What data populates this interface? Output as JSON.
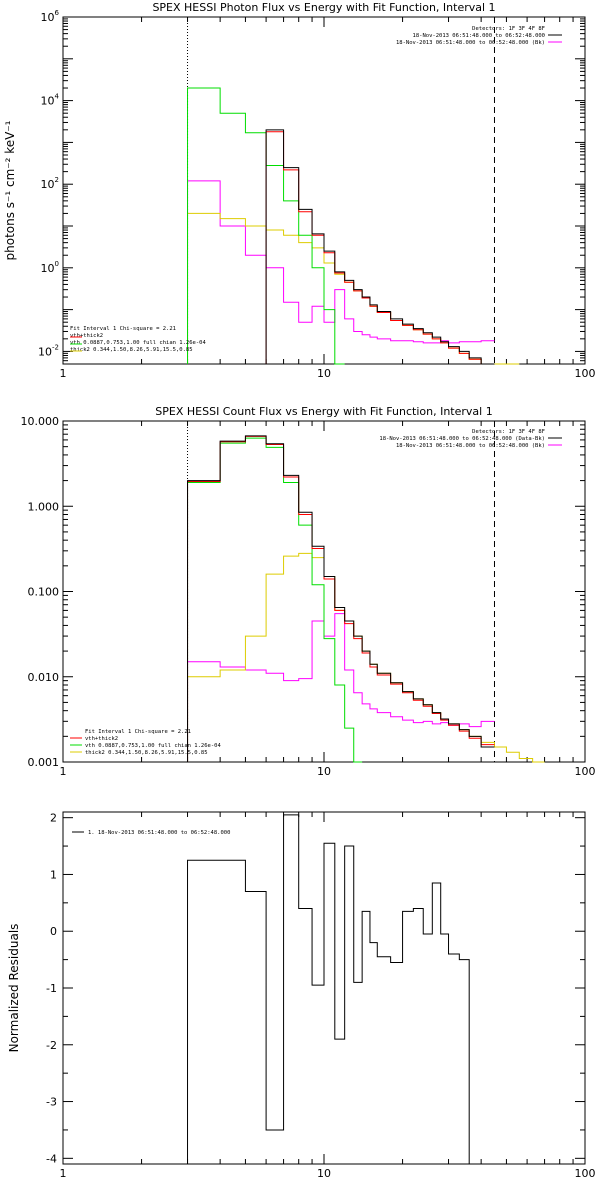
{
  "panels": [
    {
      "title": "SPEX HESSI Photon Flux vs Energy with Fit Function, Interval 1",
      "ylabel": "photons s⁻¹ cm⁻² keV⁻¹",
      "ytick_labels": [
        {
          "base": "10",
          "exp": "-2",
          "value": 0.01
        },
        {
          "base": "10",
          "exp": "0",
          "value": 1
        },
        {
          "base": "10",
          "exp": "2",
          "value": 100
        },
        {
          "base": "10",
          "exp": "4",
          "value": 10000
        },
        {
          "base": "10",
          "exp": "6",
          "value": 1000000
        }
      ],
      "xtick_labels": [
        "1",
        "10",
        "100"
      ],
      "legend_top": [
        "Detectors: 1F 3F 4F 8F",
        "18-Nov-2013 06:51:48.000 to 06:52:48.000",
        "18-Nov-2013 06:51:48.000 to 06:52:48.000 (Bk)"
      ],
      "legend_bottom": [
        "Fit Interval 1   Chi-square = 2.21",
        "vth+thick2",
        "vth 0.0887,0.753,1.00  full chian 1.26e-04",
        "thick2 0.344,1.50,8.26,5.91,15.5,0.85"
      ]
    },
    {
      "title": "SPEX HESSI Count Flux vs Energy with Fit Function, Interval 1",
      "ylabel": "",
      "ytick_labels": [
        "0.001",
        "0.010",
        "0.100",
        "1.000",
        "10.000"
      ],
      "xtick_labels": [
        "1",
        "10",
        "100"
      ],
      "legend_top": [
        "Detectors: 1F 3F 4F 8F",
        "18-Nov-2013 06:51:48.000 to 06:52:48.000 (Data-Bk)",
        "18-Nov-2013 06:51:48.000 to 06:52:48.000 (Bk)"
      ],
      "legend_bottom": [
        "Fit Interval 1   Chi-square = 2.21",
        "vth+thick2",
        "vth 0.0887,0.753,1.00  full chian 1.26e-04",
        "thick2 0.344,1.50,8.26,5.91,15.5,0.85"
      ]
    },
    {
      "title": "",
      "ylabel": "Normalized Residuals",
      "ytick_labels": [
        "-4",
        "-3",
        "-2",
        "-1",
        "0",
        "1",
        "2"
      ],
      "xtick_labels": [
        "1",
        "10",
        "100"
      ],
      "legend": "1. 18-Nov-2013 06:51:48.000 to 06:52:48.000"
    }
  ],
  "chart_data": [
    {
      "type": "line",
      "title": "SPEX HESSI Photon Flux vs Energy with Fit Function, Interval 1",
      "ylabel": "photons s⁻¹ cm⁻² keV⁻¹",
      "xscale": "log",
      "yscale": "log",
      "xlim": [
        1,
        100
      ],
      "ylim": [
        0.005,
        1000000
      ],
      "vlines": [
        {
          "x": 3,
          "style": "dotted"
        },
        {
          "x": 45,
          "style": "dashed"
        }
      ],
      "bin_edges": [
        3,
        4,
        5,
        6,
        7,
        8,
        9,
        10,
        11,
        12,
        13,
        14,
        15,
        16,
        18,
        20,
        22,
        24,
        26,
        28,
        30,
        33,
        36,
        40,
        45,
        50,
        56
      ],
      "series": [
        {
          "name": "data",
          "color": "#000000",
          "values": [
            null,
            null,
            null,
            2000,
            250,
            25,
            6.5,
            2.5,
            0.8,
            0.5,
            0.3,
            0.2,
            0.13,
            0.09,
            0.06,
            0.045,
            0.035,
            0.028,
            0.022,
            0.017,
            0.013,
            0.01,
            0.007,
            0.005,
            null,
            null
          ]
        },
        {
          "name": "vth+thick2",
          "color": "#ff0000",
          "values": [
            null,
            null,
            null,
            1800,
            220,
            22,
            6,
            2.3,
            0.75,
            0.45,
            0.28,
            0.19,
            0.12,
            0.085,
            0.055,
            0.042,
            0.033,
            0.026,
            0.02,
            0.016,
            0.012,
            0.009,
            0.0065,
            0.0048,
            null,
            null
          ]
        },
        {
          "name": "vth",
          "color": "#00dd00",
          "values": [
            20000,
            5000,
            1700,
            280,
            40,
            6,
            1,
            0.1,
            0.005,
            null,
            null,
            null,
            null,
            null,
            null,
            null,
            null,
            null,
            null,
            null,
            null,
            null,
            null,
            null,
            null,
            null
          ]
        },
        {
          "name": "thick2",
          "color": "#ddcc00",
          "values": [
            20,
            15,
            10,
            8,
            6,
            4,
            3,
            1.3,
            0.7,
            0.45,
            0.28,
            0.19,
            0.12,
            0.085,
            0.055,
            0.042,
            0.033,
            0.026,
            0.02,
            0.016,
            0.012,
            0.009,
            0.0065,
            0.0048,
            0.0035,
            0.0025
          ]
        },
        {
          "name": "Bk",
          "color": "#ff00ff",
          "values": [
            120,
            10,
            2,
            1,
            0.15,
            0.05,
            0.12,
            0.05,
            0.3,
            0.06,
            0.03,
            0.025,
            0.022,
            0.02,
            0.018,
            0.018,
            0.017,
            0.016,
            0.016,
            0.018,
            0.016,
            0.017,
            0.017,
            0.018,
            null,
            null
          ]
        }
      ]
    },
    {
      "type": "line",
      "title": "SPEX HESSI Count Flux vs Energy with Fit Function, Interval 1",
      "xscale": "log",
      "yscale": "log",
      "xlim": [
        1,
        100
      ],
      "ylim": [
        0.001,
        10
      ],
      "vlines": [
        {
          "x": 3,
          "style": "dotted"
        },
        {
          "x": 45,
          "style": "dashed"
        }
      ],
      "bin_edges": [
        3,
        4,
        5,
        6,
        7,
        8,
        9,
        10,
        11,
        12,
        13,
        14,
        15,
        16,
        18,
        20,
        22,
        24,
        26,
        28,
        30,
        33,
        36,
        40,
        45,
        50,
        56,
        63,
        70
      ],
      "series": [
        {
          "name": "data",
          "color": "#000000",
          "values": [
            2.0,
            5.8,
            6.7,
            5.4,
            2.3,
            0.85,
            0.34,
            0.15,
            0.065,
            0.045,
            0.03,
            0.02,
            0.014,
            0.011,
            0.0085,
            0.0067,
            0.0055,
            0.0047,
            0.0038,
            0.0032,
            0.0028,
            0.0024,
            0.002,
            0.0015,
            null,
            null,
            null,
            null
          ]
        },
        {
          "name": "vth+thick2",
          "color": "#ff0000",
          "values": [
            1.95,
            5.7,
            6.6,
            5.3,
            2.2,
            0.8,
            0.32,
            0.14,
            0.06,
            0.042,
            0.028,
            0.019,
            0.013,
            0.0105,
            0.0082,
            0.0065,
            0.0053,
            0.0045,
            0.0037,
            0.0031,
            0.0027,
            0.0023,
            0.0019,
            0.0016,
            null,
            null,
            null,
            null
          ]
        },
        {
          "name": "vth",
          "color": "#00dd00",
          "values": [
            1.9,
            5.5,
            6.3,
            4.9,
            1.9,
            0.6,
            0.12,
            0.028,
            0.008,
            0.0025,
            0.001,
            null,
            null,
            null,
            null,
            null,
            null,
            null,
            null,
            null,
            null,
            null,
            null,
            null,
            null,
            null,
            null,
            null
          ]
        },
        {
          "name": "thick2",
          "color": "#ddcc00",
          "values": [
            0.01,
            0.012,
            0.03,
            0.16,
            0.26,
            0.28,
            0.25,
            0.15,
            0.06,
            0.045,
            0.03,
            0.02,
            0.014,
            0.011,
            0.0085,
            0.0067,
            0.0055,
            0.0047,
            0.0038,
            0.0032,
            0.0028,
            0.0024,
            0.002,
            0.0017,
            0.0015,
            0.0013,
            0.0011,
            0.001
          ]
        },
        {
          "name": "Bk",
          "color": "#ff00ff",
          "values": [
            0.015,
            0.013,
            0.012,
            0.011,
            0.009,
            0.0095,
            0.045,
            0.03,
            0.055,
            0.012,
            0.0065,
            0.0048,
            0.0042,
            0.0038,
            0.0034,
            0.0031,
            0.0029,
            0.003,
            0.0028,
            0.0029,
            0.0027,
            0.0028,
            0.0026,
            0.003,
            null,
            null,
            null,
            null
          ]
        }
      ]
    },
    {
      "type": "line",
      "ylabel": "Normalized Residuals",
      "xscale": "log",
      "yscale": "linear",
      "xlim": [
        1,
        100
      ],
      "ylim": [
        -4.1,
        2.1
      ],
      "bin_edges": [
        3,
        4,
        5,
        6,
        7,
        8,
        9,
        10,
        11,
        12,
        13,
        14,
        15,
        16,
        18,
        20,
        22,
        24,
        26,
        28,
        30,
        33,
        36,
        40,
        45
      ],
      "series": [
        {
          "name": "1. 18-Nov-2013 06:51:48.000 to 06:52:48.000",
          "color": "#000000",
          "values": [
            1.25,
            1.25,
            0.7,
            -3.5,
            2.05,
            0.4,
            -0.95,
            1.55,
            -1.9,
            1.5,
            -0.9,
            0.35,
            -0.2,
            -0.45,
            -0.55,
            0.35,
            0.4,
            -0.05,
            0.85,
            -0.05,
            -0.4,
            -0.5
          ]
        }
      ]
    }
  ]
}
